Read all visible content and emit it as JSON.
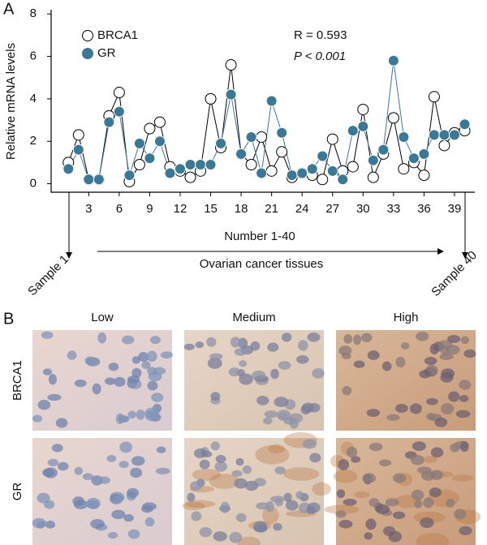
{
  "chart_data": {
    "type": "line",
    "panel_label": "A",
    "ylabel": "Relative mRNA levels",
    "annotations": [
      "R = 0.593",
      "P < 0.001"
    ],
    "x": [
      1,
      2,
      3,
      4,
      5,
      6,
      7,
      8,
      9,
      10,
      11,
      12,
      13,
      14,
      15,
      16,
      17,
      18,
      19,
      20,
      21,
      22,
      23,
      24,
      25,
      26,
      27,
      28,
      29,
      30,
      31,
      32,
      33,
      34,
      35,
      36,
      37,
      38,
      39,
      40
    ],
    "series": [
      {
        "name": "BRCA1",
        "color": "#000000",
        "marker": "open",
        "values": [
          1.0,
          2.3,
          0.2,
          0.2,
          3.2,
          4.3,
          0.1,
          0.9,
          2.6,
          2.9,
          0.8,
          0.6,
          0.3,
          0.6,
          4.0,
          1.7,
          5.6,
          1.4,
          0.9,
          2.2,
          0.6,
          1.5,
          0.3,
          0.5,
          0.4,
          0.2,
          2.1,
          0.6,
          0.8,
          3.5,
          0.3,
          1.4,
          3.1,
          0.7,
          1.0,
          0.4,
          4.1,
          1.8,
          2.4,
          2.5
        ]
      },
      {
        "name": "GR",
        "color": "#3a7896",
        "marker": "filled",
        "values": [
          0.7,
          1.6,
          0.2,
          0.2,
          2.9,
          3.4,
          0.4,
          1.9,
          1.2,
          2.0,
          0.5,
          0.7,
          0.9,
          0.9,
          0.9,
          1.9,
          4.2,
          1.4,
          2.2,
          0.5,
          3.9,
          2.4,
          0.4,
          0.5,
          0.7,
          1.3,
          0.6,
          0.2,
          2.5,
          2.7,
          1.1,
          1.6,
          5.8,
          2.2,
          1.2,
          1.4,
          2.3,
          2.3,
          2.3,
          2.8
        ]
      }
    ],
    "xlim": [
      -0.7,
      41
    ],
    "xticks": [
      3,
      6,
      9,
      12,
      15,
      18,
      21,
      24,
      27,
      30,
      33,
      36,
      39
    ],
    "ylim": [
      -0.4,
      8.2
    ],
    "yticks": [
      0,
      2,
      4,
      6,
      8
    ],
    "legend": "top-left",
    "first_sample": "Sample 1",
    "last_sample": "Sample 40",
    "range_label": "Number 1-40",
    "tissue_label": "Ovarian cancer tissues"
  },
  "panel_b": {
    "panel_label": "B",
    "columns": [
      "Low",
      "Medium",
      "High"
    ],
    "rows": [
      "BRCA1",
      "GR"
    ]
  }
}
